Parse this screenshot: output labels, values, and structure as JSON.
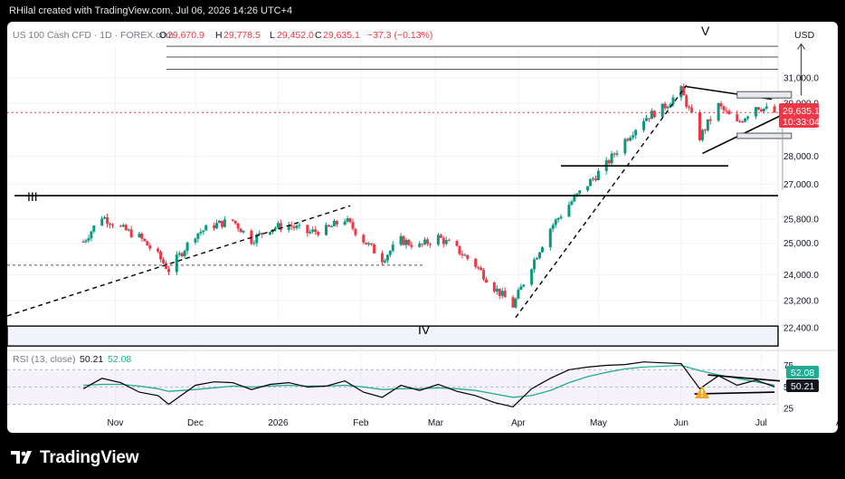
{
  "header": {
    "credit": "RHilal created with TradingView.com, Jul 06, 2026 14:26 UTC+4"
  },
  "legend": {
    "symbol": "US 100 Cash CFD · 1D · FOREX.com",
    "o_label": "O",
    "o_value": "29,670.9",
    "h_label": "H",
    "h_value": "29,778.5",
    "l_label": "L",
    "l_value": "29,452.0",
    "c_label": "C",
    "c_value": "29,635.1",
    "change": "−37.3 (−0.13%)",
    "currency": "USD"
  },
  "price_tag": {
    "price": "29,635.1",
    "countdown": "10:33:04"
  },
  "rsi": {
    "label": "RSI (13, close)",
    "value": "50.21",
    "ma_value": "52.08"
  },
  "waves": {
    "III": "III",
    "IV": "IV",
    "V": "V"
  },
  "colors": {
    "up": "#089981",
    "down": "#f23645",
    "rsi_line": "#000000",
    "rsi_ma": "#22ab94",
    "rsi_band": "#7e57c2",
    "warn": "#f5a623"
  },
  "chart_data": [
    {
      "type": "candlestick",
      "title": "US 100 Cash CFD · 1D · FOREX.com",
      "x_ticks": [
        "Nov",
        "Dec",
        "2026",
        "Feb",
        "Mar",
        "Apr",
        "May",
        "Jun",
        "Jul",
        "Aug"
      ],
      "y_ticks": [
        "31,000.0",
        "30,000.0",
        "28,000.0",
        "27,000.0",
        "25,800.0",
        "25,000.0",
        "24,000.0",
        "23,200.0",
        "22,400.0"
      ],
      "y_scale": "log",
      "ylim": [
        22000,
        32500
      ],
      "current_price": 29635.1,
      "close_series_approx": [
        {
          "date": "2025-10-20",
          "close": 25050
        },
        {
          "date": "2025-10-27",
          "close": 25900
        },
        {
          "date": "2025-11-03",
          "close": 25500
        },
        {
          "date": "2025-11-10",
          "close": 25200
        },
        {
          "date": "2025-11-17",
          "close": 24600
        },
        {
          "date": "2025-11-21",
          "close": 24150
        },
        {
          "date": "2025-12-01",
          "close": 25300
        },
        {
          "date": "2025-12-08",
          "close": 25600
        },
        {
          "date": "2025-12-15",
          "close": 25750
        },
        {
          "date": "2025-12-22",
          "close": 25100
        },
        {
          "date": "2025-12-29",
          "close": 25500
        },
        {
          "date": "2026-01-05",
          "close": 25600
        },
        {
          "date": "2026-01-12",
          "close": 25350
        },
        {
          "date": "2026-01-19",
          "close": 25450
        },
        {
          "date": "2026-01-26",
          "close": 25800
        },
        {
          "date": "2026-02-02",
          "close": 25100
        },
        {
          "date": "2026-02-09",
          "close": 24500
        },
        {
          "date": "2026-02-16",
          "close": 25100
        },
        {
          "date": "2026-02-23",
          "close": 24900
        },
        {
          "date": "2026-03-02",
          "close": 25200
        },
        {
          "date": "2026-03-09",
          "close": 24800
        },
        {
          "date": "2026-03-16",
          "close": 24300
        },
        {
          "date": "2026-03-23",
          "close": 23600
        },
        {
          "date": "2026-03-30",
          "close": 23050
        },
        {
          "date": "2026-04-06",
          "close": 24300
        },
        {
          "date": "2026-04-13",
          "close": 25500
        },
        {
          "date": "2026-04-20",
          "close": 26300
        },
        {
          "date": "2026-04-27",
          "close": 27000
        },
        {
          "date": "2026-05-04",
          "close": 27700
        },
        {
          "date": "2026-05-11",
          "close": 28600
        },
        {
          "date": "2026-05-18",
          "close": 29400
        },
        {
          "date": "2026-05-25",
          "close": 29800
        },
        {
          "date": "2026-06-01",
          "close": 30500
        },
        {
          "date": "2026-06-08",
          "close": 28700
        },
        {
          "date": "2026-06-15",
          "close": 29900
        },
        {
          "date": "2026-06-22",
          "close": 29200
        },
        {
          "date": "2026-06-29",
          "close": 29900
        },
        {
          "date": "2026-07-06",
          "close": 29635
        }
      ],
      "annotations": [
        {
          "label": "III",
          "date": "2025-10-30",
          "price": 26500
        },
        {
          "label": "IV",
          "date": "2026-03-30",
          "price": 22700
        },
        {
          "label": "V",
          "date": "2026-07-16",
          "price": 32400
        }
      ],
      "horizontal_levels": [
        22300,
        26600,
        27650,
        31350,
        31850,
        32300
      ]
    },
    {
      "type": "line",
      "title": "RSI (13, close)",
      "y_ticks": [
        "75",
        "50",
        "25"
      ],
      "ylim": [
        20,
        85
      ],
      "series": [
        {
          "name": "RSI",
          "values": [
            48,
            60,
            55,
            44,
            40,
            30,
            52,
            56,
            55,
            47,
            53,
            55,
            50,
            51,
            57,
            44,
            38,
            52,
            46,
            53,
            45,
            40,
            32,
            27,
            48,
            60,
            70,
            73,
            75,
            76,
            79,
            78,
            77,
            48,
            63,
            52,
            58,
            50.21
          ]
        },
        {
          "name": "RSI MA",
          "values": [
            52,
            53,
            53,
            51,
            48,
            45,
            47,
            49,
            51,
            50,
            51,
            52,
            51,
            51,
            52,
            50,
            47,
            48,
            48,
            49,
            48,
            46,
            42,
            38,
            40,
            46,
            55,
            62,
            67,
            71,
            73,
            74,
            75,
            69,
            64,
            60,
            56,
            52.08
          ]
        }
      ],
      "reference_levels": [
        70,
        50,
        30
      ]
    }
  ]
}
